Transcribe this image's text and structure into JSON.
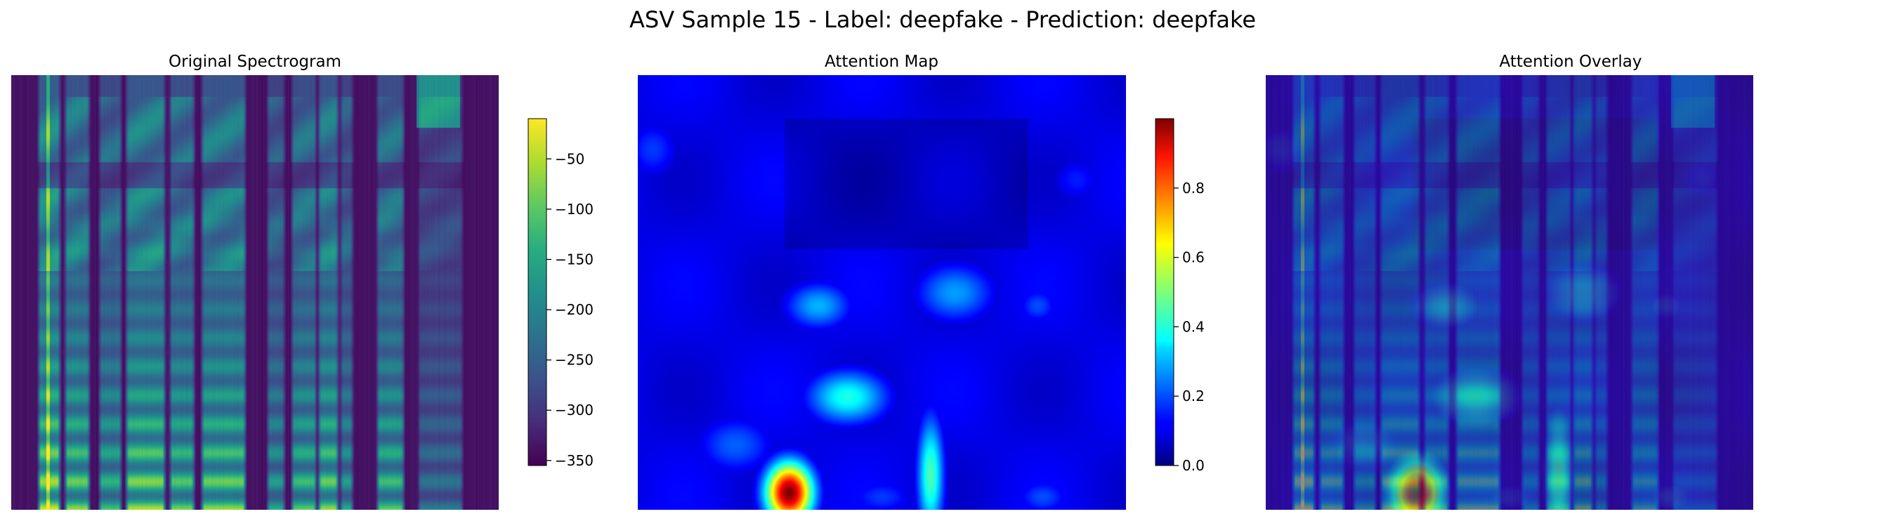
{
  "figure": {
    "suptitle": "ASV Sample 15 - Label: deepfake - Prediction: deepfake"
  },
  "chart_data": [
    {
      "type": "heatmap",
      "title": "Original Spectrogram",
      "xlabel": "",
      "ylabel": "",
      "colormap": "viridis",
      "axes_visible": false,
      "colorbar": {
        "ticks": [
          -50,
          -100,
          -150,
          -200,
          -250,
          -300,
          -350
        ],
        "tick_labels": [
          "−50",
          "−100",
          "−150",
          "−200",
          "−250",
          "−300",
          "−350"
        ],
        "range": [
          -355,
          -10
        ]
      },
      "voiced_segments": [
        {
          "start": 0.06,
          "end": 0.095,
          "strength": 0.95
        },
        {
          "start": 0.115,
          "end": 0.155,
          "strength": 0.85
        },
        {
          "start": 0.185,
          "end": 0.22,
          "strength": 0.7
        },
        {
          "start": 0.24,
          "end": 0.31,
          "strength": 0.9
        },
        {
          "start": 0.33,
          "end": 0.37,
          "strength": 0.8
        },
        {
          "start": 0.395,
          "end": 0.475,
          "strength": 0.85
        },
        {
          "start": 0.53,
          "end": 0.555,
          "strength": 0.6
        },
        {
          "start": 0.58,
          "end": 0.62,
          "strength": 0.75
        },
        {
          "start": 0.635,
          "end": 0.665,
          "strength": 0.85
        },
        {
          "start": 0.68,
          "end": 0.695,
          "strength": 0.6
        },
        {
          "start": 0.755,
          "end": 0.8,
          "strength": 0.75
        },
        {
          "start": 0.84,
          "end": 0.92,
          "strength": 0.4
        }
      ]
    },
    {
      "type": "heatmap",
      "title": "Attention Map",
      "xlabel": "",
      "ylabel": "",
      "colormap": "jet",
      "axes_visible": false,
      "colorbar": {
        "ticks": [
          0.0,
          0.2,
          0.4,
          0.6,
          0.8
        ],
        "tick_labels": [
          "0.0",
          "0.2",
          "0.4",
          "0.6",
          "0.8"
        ],
        "range": [
          0,
          1.0
        ]
      },
      "hotspots": [
        {
          "x": 0.31,
          "y": 0.96,
          "value": 1.0,
          "sx": 0.035,
          "sy": 0.05
        },
        {
          "x": 0.6,
          "y": 0.92,
          "value": 0.45,
          "sx": 0.02,
          "sy": 0.1
        },
        {
          "x": 0.43,
          "y": 0.74,
          "value": 0.4,
          "sx": 0.06,
          "sy": 0.045
        },
        {
          "x": 0.37,
          "y": 0.53,
          "value": 0.3,
          "sx": 0.05,
          "sy": 0.04
        },
        {
          "x": 0.65,
          "y": 0.5,
          "value": 0.28,
          "sx": 0.06,
          "sy": 0.05
        },
        {
          "x": 0.82,
          "y": 0.53,
          "value": 0.2,
          "sx": 0.03,
          "sy": 0.03
        },
        {
          "x": 0.03,
          "y": 0.17,
          "value": 0.18,
          "sx": 0.04,
          "sy": 0.05
        },
        {
          "x": 0.2,
          "y": 0.85,
          "value": 0.22,
          "sx": 0.06,
          "sy": 0.05
        },
        {
          "x": 0.83,
          "y": 0.97,
          "value": 0.2,
          "sx": 0.04,
          "sy": 0.03
        },
        {
          "x": 0.9,
          "y": 0.24,
          "value": 0.15,
          "sx": 0.04,
          "sy": 0.04
        },
        {
          "x": 0.5,
          "y": 0.97,
          "value": 0.18,
          "sx": 0.05,
          "sy": 0.03
        }
      ]
    },
    {
      "type": "heatmap",
      "title": "Attention Overlay",
      "xlabel": "",
      "ylabel": "",
      "composite_of": [
        "Original Spectrogram",
        "Attention Map"
      ],
      "axes_visible": false
    }
  ]
}
